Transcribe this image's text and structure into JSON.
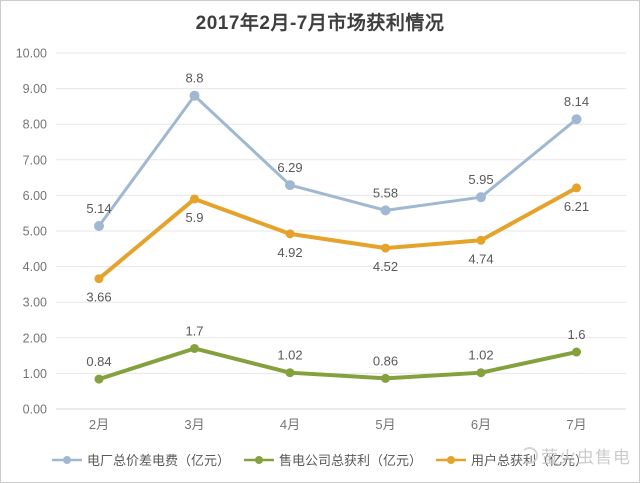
{
  "watermark": {
    "text": "萤火虫售电"
  },
  "chart_data": {
    "type": "line",
    "title": "2017年2月-7月市场获利情况",
    "categories": [
      "2月",
      "3月",
      "4月",
      "5月",
      "6月",
      "7月"
    ],
    "series": [
      {
        "name": "电厂总价差电费（亿元）",
        "values": [
          5.14,
          8.8,
          6.29,
          5.58,
          5.95,
          8.14
        ],
        "labels": [
          "5.14",
          "8.8",
          "6.29",
          "5.58",
          "5.95",
          "8.14"
        ],
        "color": "#A0B8D1",
        "label_position": "above"
      },
      {
        "name": "售电公司总获利（亿元）",
        "values": [
          0.84,
          1.7,
          1.02,
          0.86,
          1.02,
          1.6
        ],
        "labels": [
          "0.84",
          "1.7",
          "1.02",
          "0.86",
          "1.02",
          "1.6"
        ],
        "color": "#85A13E",
        "label_position": "above"
      },
      {
        "name": "用户总获利（亿元）",
        "values": [
          3.66,
          5.9,
          4.92,
          4.52,
          4.74,
          6.21
        ],
        "labels": [
          "3.66",
          "5.9",
          "4.92",
          "4.52",
          "4.74",
          "6.21"
        ],
        "color": "#E5A32B",
        "label_position": "below"
      }
    ],
    "ylim": [
      0,
      10
    ],
    "ytick_step": 1,
    "ytick_labels": [
      "0.00",
      "1.00",
      "2.00",
      "3.00",
      "4.00",
      "5.00",
      "6.00",
      "7.00",
      "8.00",
      "9.00",
      "10.00"
    ],
    "xlabel": "",
    "ylabel": "",
    "grid": "horizontal",
    "legend_position": "bottom"
  }
}
